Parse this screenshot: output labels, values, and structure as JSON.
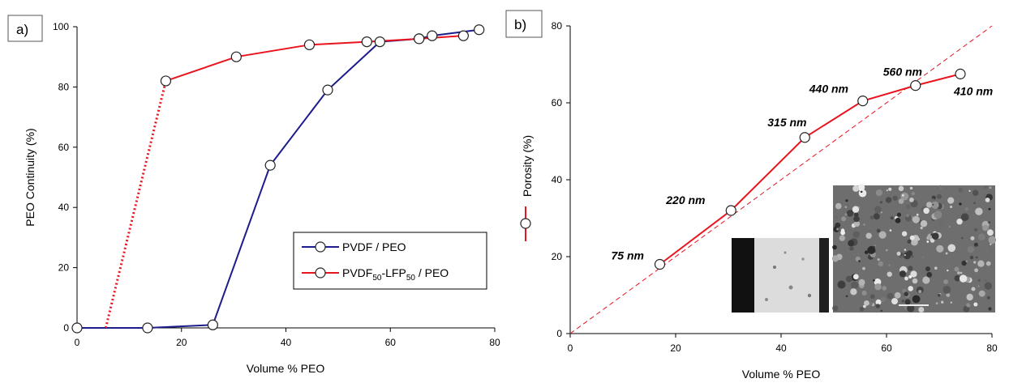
{
  "panel_a": {
    "label": "a)",
    "xlabel": "Volume % PEO",
    "ylabel": "PEO Continuity (%)"
  },
  "panel_b": {
    "label": "b)",
    "xlabel": "Volume % PEO",
    "ylabel": "Porosity (%)"
  },
  "legend": {
    "pvdf_label": "PVDF / PEO",
    "lfp_label_parts": [
      "PVDF",
      "50",
      "-LFP",
      "50",
      " / PEO"
    ]
  },
  "colors": {
    "pvdf": "#1c1c8c",
    "lfp": "#e8141e",
    "axis": "#000000"
  },
  "chart_data": [
    {
      "type": "line",
      "xlim": [
        0,
        80
      ],
      "ylim": [
        0,
        100
      ],
      "xticks": [
        0,
        20,
        40,
        60,
        80
      ],
      "yticks": [
        0,
        20,
        40,
        60,
        80,
        100
      ],
      "legend_position": "bottom-right",
      "grid": false,
      "series": [
        {
          "name": "PVDF / PEO",
          "color": "#1c1c8c",
          "x": [
            0,
            13.5,
            26,
            37,
            48,
            58,
            65.5,
            68,
            77
          ],
          "y": [
            0,
            0,
            1,
            54,
            79,
            95,
            96,
            97,
            99
          ]
        },
        {
          "name": "PVDF50-LFP50 / PEO",
          "color": "#e8141e",
          "x": [
            17,
            30.5,
            44.5,
            55.5,
            65.5,
            74
          ],
          "y": [
            82,
            90,
            94,
            95,
            96,
            97
          ],
          "dotted_extension": {
            "x": [
              5.5,
              17
            ],
            "y": [
              0,
              82
            ]
          }
        }
      ]
    },
    {
      "type": "line",
      "xlim": [
        0,
        80
      ],
      "ylim": [
        0,
        80
      ],
      "xticks": [
        0,
        20,
        40,
        60,
        80
      ],
      "yticks": [
        0,
        20,
        40,
        60,
        80
      ],
      "grid": false,
      "series": [
        {
          "name": "Porosity (%)",
          "color": "#e8141e",
          "x": [
            17,
            30.5,
            44.5,
            55.5,
            65.5,
            74
          ],
          "y": [
            18,
            32,
            51,
            60.5,
            64.5,
            67.5
          ],
          "point_labels": [
            "75 nm",
            "220 nm",
            "315 nm",
            "440 nm",
            "560 nm",
            "410 nm"
          ]
        }
      ],
      "reference_line": {
        "style": "dashed",
        "x": [
          0,
          80
        ],
        "y": [
          0,
          80
        ]
      }
    }
  ]
}
